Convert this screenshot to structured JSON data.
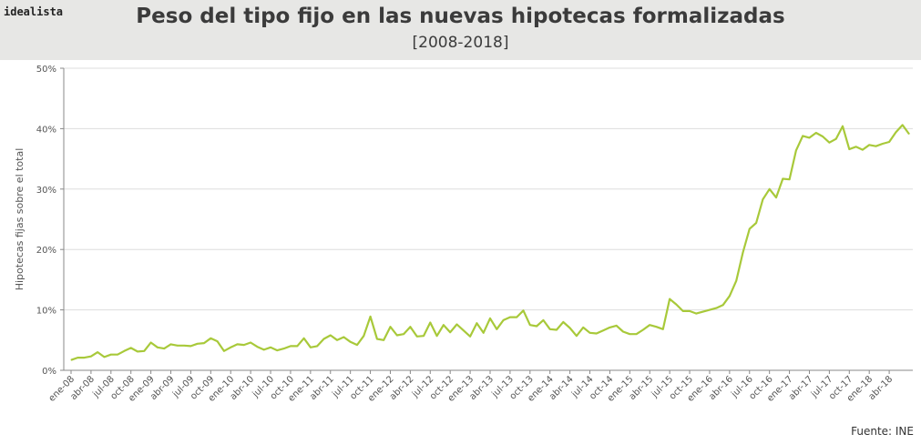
{
  "brand": "idealista",
  "header": {
    "title": "Peso del tipo fijo en las nuevas hipotecas formalizadas",
    "subtitle": "[2008-2018]"
  },
  "source": "Fuente: INE",
  "colors": {
    "line": "#a8c93a",
    "header_bg": "#e7e7e5",
    "grid": "#dddddd"
  },
  "chart_data": {
    "type": "line",
    "title": "Peso del tipo fijo en las nuevas hipotecas formalizadas",
    "subtitle": "[2008-2018]",
    "xlabel": "",
    "ylabel": "Hipotecas fijas sobre el total",
    "ylim": [
      0,
      50
    ],
    "y_ticks": [
      "0%",
      "10%",
      "20%",
      "30%",
      "40%",
      "50%"
    ],
    "grid": "horizontal",
    "x_tick_labels": [
      "ene-08",
      "abr-08",
      "jul-08",
      "oct-08",
      "ene-09",
      "abr-09",
      "jul-09",
      "oct-09",
      "ene-10",
      "abr-10",
      "jul-10",
      "oct-10",
      "ene-11",
      "abr-11",
      "jul-11",
      "oct-11",
      "ene-12",
      "abr-12",
      "jul-12",
      "oct-12",
      "ene-13",
      "abr-13",
      "jul-13",
      "oct-13",
      "ene-14",
      "abr-14",
      "jul-14",
      "oct-14",
      "ene-15",
      "abr-15",
      "jul-15",
      "oct-15",
      "ene-16",
      "abr-16",
      "jul-16",
      "oct-16",
      "ene-17",
      "abr-17",
      "jul-17",
      "oct-17",
      "ene-18",
      "abr-18"
    ],
    "series": [
      {
        "values": [
          1.7,
          2.1,
          2.1,
          2.3,
          3.0,
          2.2,
          2.6,
          2.6,
          3.2,
          3.7,
          3.1,
          3.2,
          4.6,
          3.8,
          3.6,
          4.3,
          4.1,
          4.1,
          4.0,
          4.4,
          4.5,
          5.3,
          4.8,
          3.2,
          3.8,
          4.3,
          4.2,
          4.6,
          3.9,
          3.4,
          3.8,
          3.3,
          3.6,
          4.0,
          4.0,
          5.3,
          3.8,
          4.0,
          5.2,
          5.8,
          5.0,
          5.5,
          4.7,
          4.2,
          5.7,
          8.9,
          5.2,
          5.0,
          7.2,
          5.8,
          6.0,
          7.2,
          5.6,
          5.7,
          7.9,
          5.7,
          7.5,
          6.3,
          7.6,
          6.6,
          5.6,
          7.8,
          6.2,
          8.6,
          6.8,
          8.3,
          8.8,
          8.8,
          9.9,
          7.5,
          7.3,
          8.3,
          6.8,
          6.7,
          8.0,
          7.0,
          5.7,
          7.1,
          6.2,
          6.1,
          6.6,
          7.1,
          7.4,
          6.4,
          6.0,
          6.0,
          6.7,
          7.5,
          7.2,
          6.8,
          11.8,
          10.9,
          9.8,
          9.8,
          9.4,
          9.7,
          10.0,
          10.3,
          10.8,
          12.3,
          14.8,
          19.5,
          23.4,
          24.4,
          28.3,
          30.0,
          28.6,
          31.7,
          31.6,
          36.4,
          38.8,
          38.5,
          39.3,
          38.7,
          37.7,
          38.3,
          40.4,
          36.6,
          37.0,
          36.5,
          37.3,
          37.1,
          37.5,
          37.8,
          39.4,
          40.6,
          39.1
        ]
      }
    ]
  }
}
